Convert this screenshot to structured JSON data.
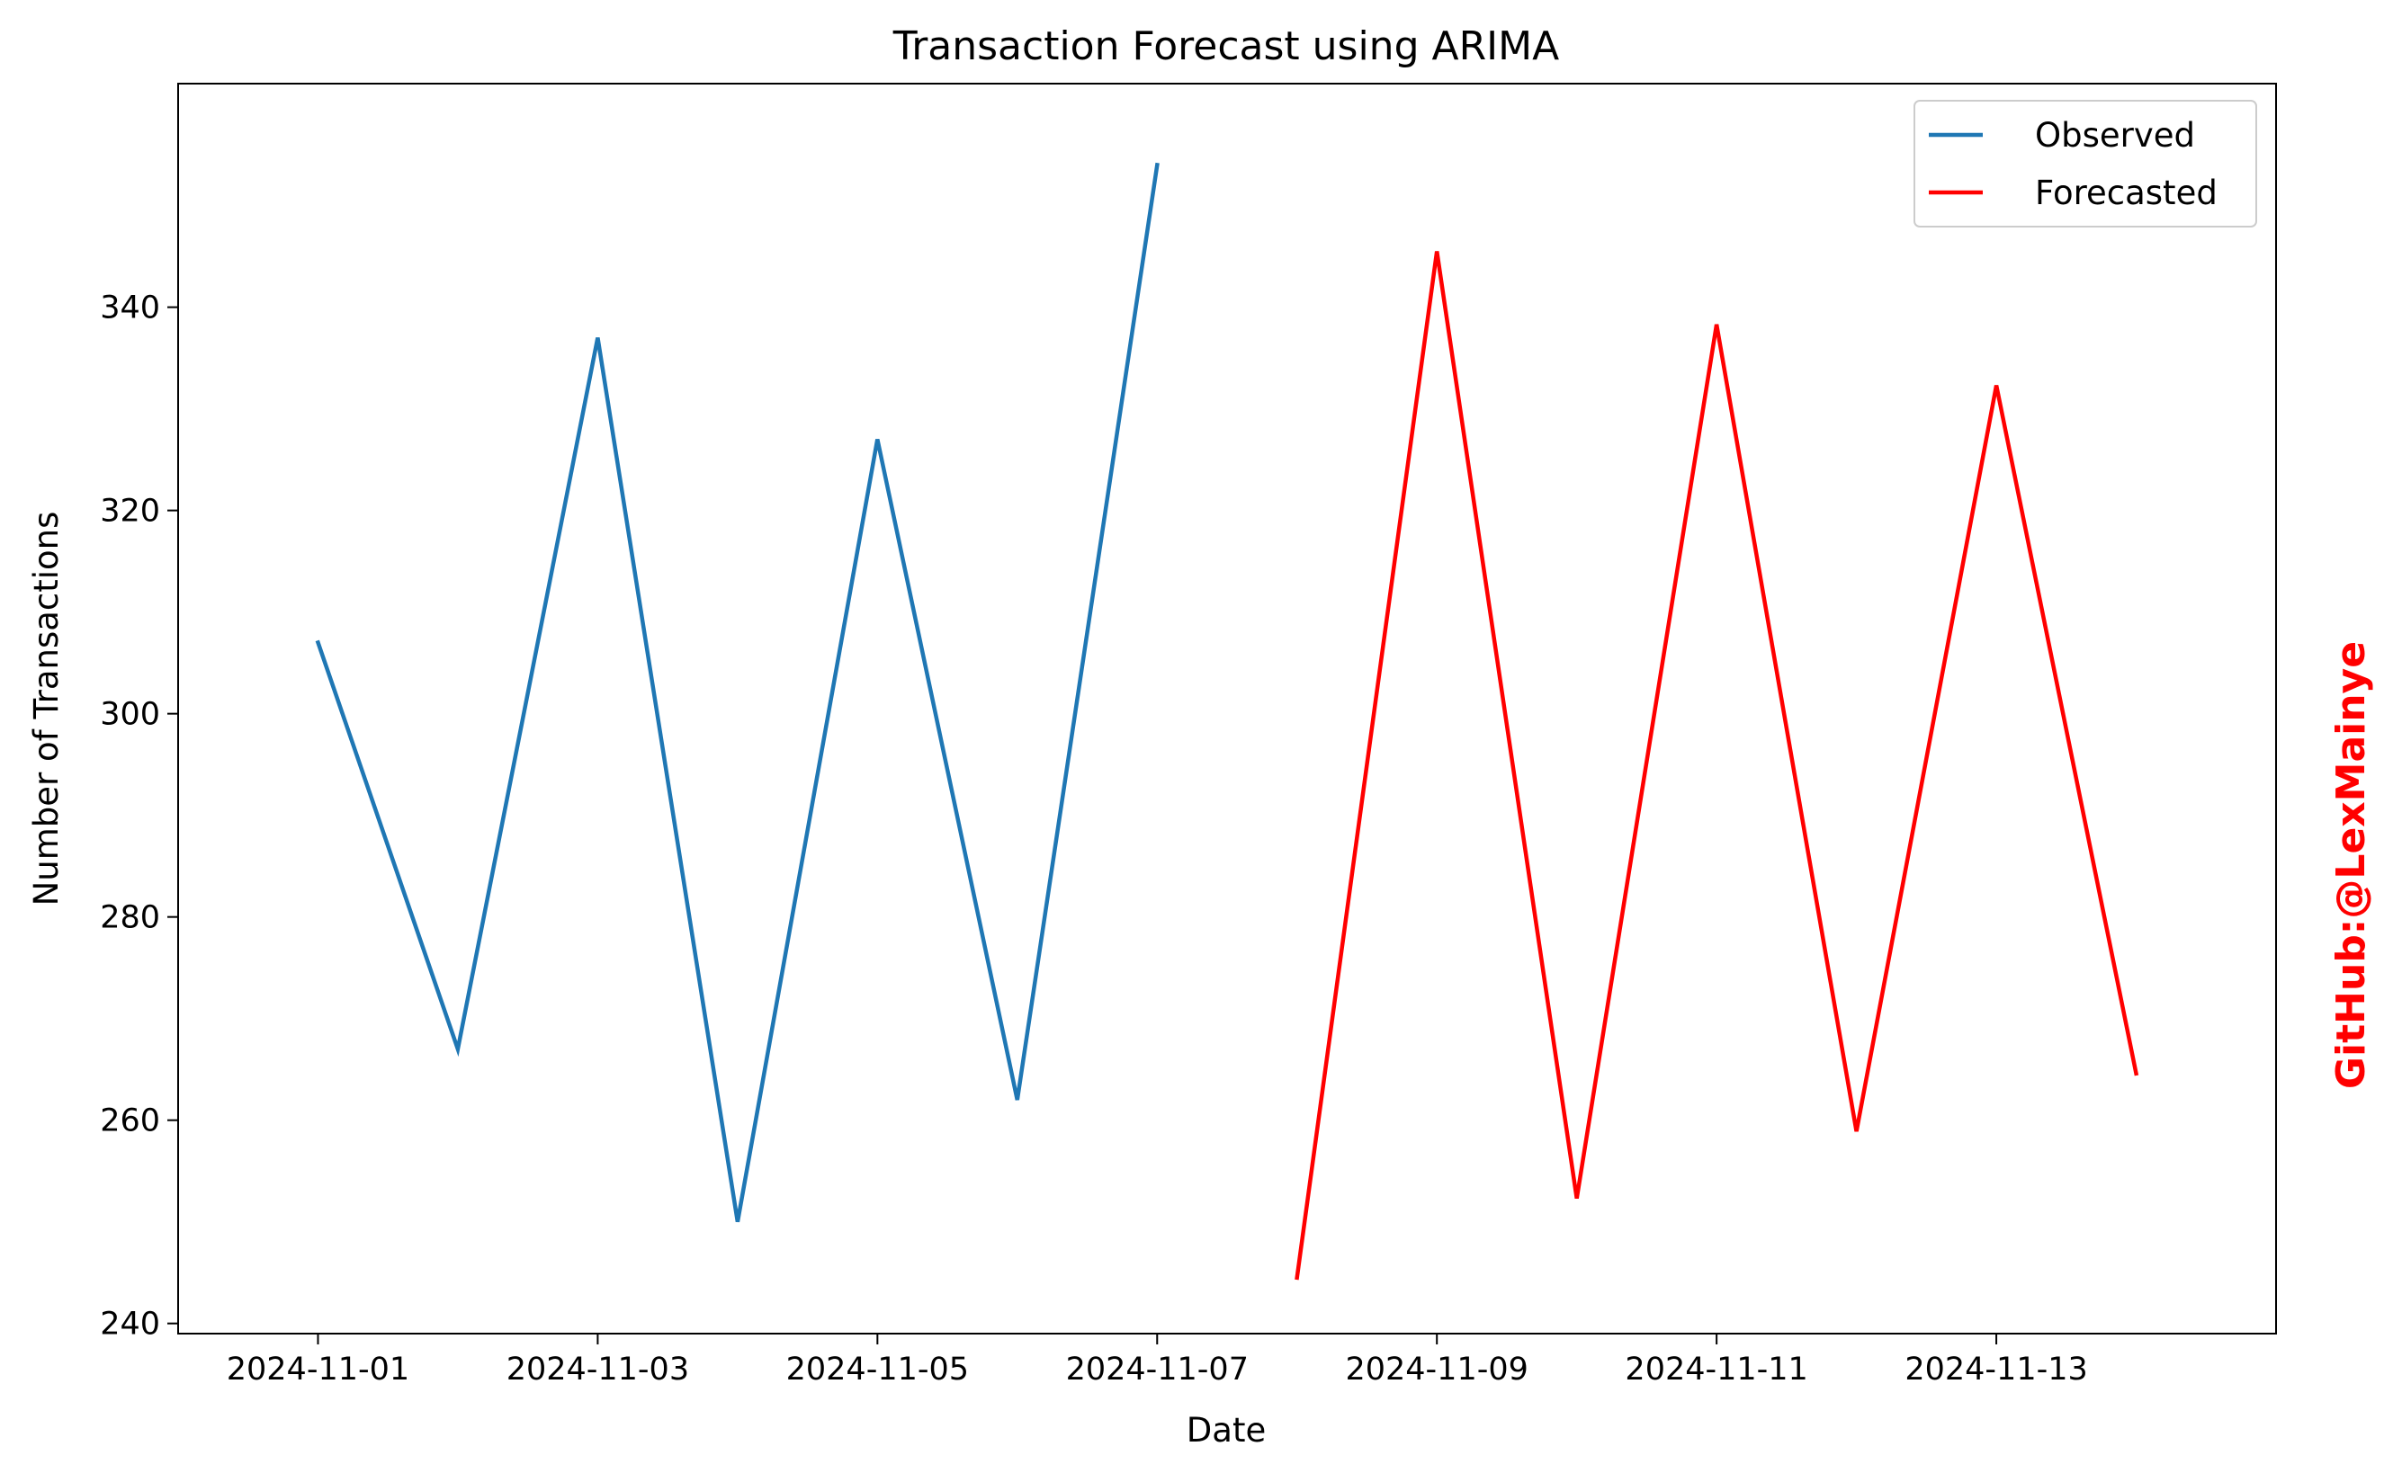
{
  "chart_data": {
    "type": "line",
    "title": "Transaction Forecast using ARIMA",
    "xlabel": "Date",
    "ylabel": "Number of Transactions",
    "xlim": [
      "2024-10-31",
      "2024-11-15"
    ],
    "ylim": [
      239,
      362
    ],
    "x_ticks": [
      "2024-11-01",
      "2024-11-03",
      "2024-11-05",
      "2024-11-07",
      "2024-11-09",
      "2024-11-11",
      "2024-11-13"
    ],
    "y_ticks": [
      240,
      260,
      280,
      300,
      320,
      340
    ],
    "grid": false,
    "legend": "top-right",
    "series": [
      {
        "name": "Observed",
        "color": "#1f77b4",
        "x": [
          "2024-11-01",
          "2024-11-02",
          "2024-11-03",
          "2024-11-04",
          "2024-11-05",
          "2024-11-06",
          "2024-11-07"
        ],
        "values": [
          307,
          267,
          337,
          250,
          327,
          262,
          354
        ]
      },
      {
        "name": "Forecasted",
        "color": "#ff0000",
        "x": [
          "2024-11-08",
          "2024-11-09",
          "2024-11-10",
          "2024-11-11",
          "2024-11-12",
          "2024-11-13",
          "2024-11-14"
        ],
        "values": [
          244.5,
          345.5,
          252.3,
          338.3,
          258.9,
          332.3,
          264.6
        ]
      }
    ]
  },
  "watermark": {
    "text": "GitHub:@LexMainye",
    "color": "#ff0000"
  }
}
